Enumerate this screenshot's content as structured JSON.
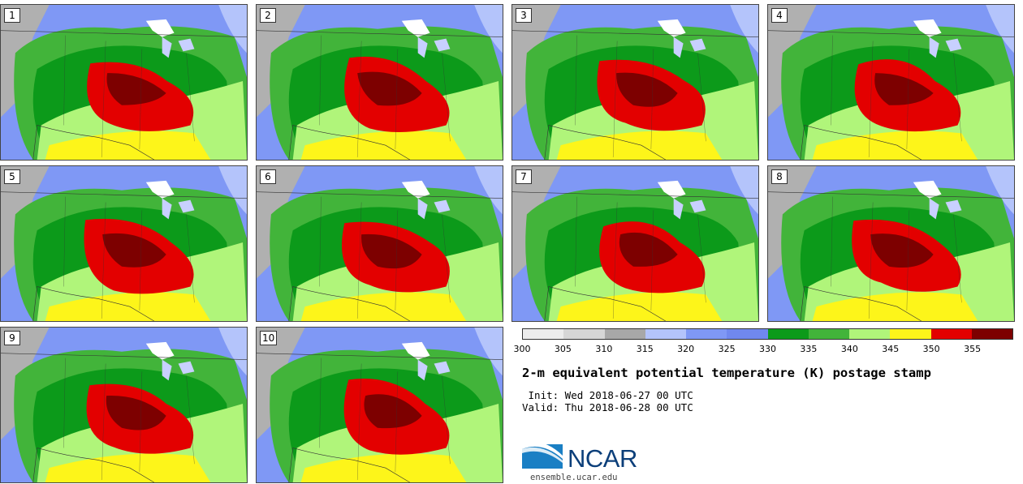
{
  "stamps": [
    {
      "label": "1"
    },
    {
      "label": "2"
    },
    {
      "label": "3"
    },
    {
      "label": "4"
    },
    {
      "label": "5"
    },
    {
      "label": "6"
    },
    {
      "label": "7"
    },
    {
      "label": "8"
    },
    {
      "label": "9"
    },
    {
      "label": "10"
    }
  ],
  "colorbar": {
    "colors": [
      "#ececec",
      "#d6d6d6",
      "#a8a8a8",
      "#b4c4fb",
      "#7f98f5",
      "#7088ee",
      "#0c9a1a",
      "#42b43a",
      "#b0f57a",
      "#fdf51a",
      "#e30000",
      "#7d0000"
    ],
    "ticks": [
      "300",
      "305",
      "310",
      "315",
      "320",
      "325",
      "330",
      "335",
      "340",
      "345",
      "350",
      "355"
    ]
  },
  "title": "2-m equivalent potential temperature (K) postage stamp",
  "init": " Init: Wed 2018-06-27 00 UTC",
  "valid": "Valid: Thu 2018-06-28 00 UTC",
  "logo": {
    "name": "NCAR",
    "url": "ensemble.ucar.edu"
  }
}
